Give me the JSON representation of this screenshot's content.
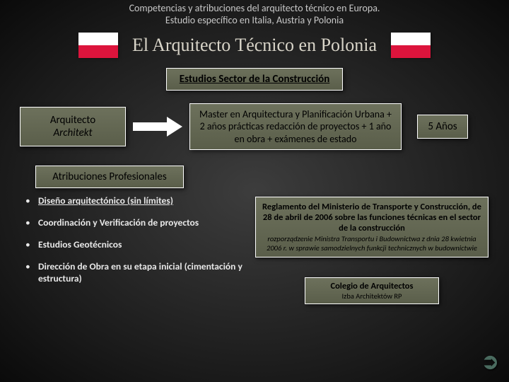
{
  "header": {
    "line1": "Competencias y atribuciones del arquitecto técnico en Europa.",
    "line2": "Estudio específico en Italia, Austria y Polonia"
  },
  "title": "El Arquitecto Técnico en Polonia",
  "flag": {
    "top_color": "#ffffff",
    "bottom_color": "#dc143c"
  },
  "section_header": "Estudios Sector de la Construcción",
  "arquitecto": {
    "line1": "Arquitecto",
    "line2": "Architekt"
  },
  "master_text": "Master en Arquitectura y Planificación Urbana + 2 años prácticas redacción de proyectos + 1 año en obra + exámenes de estado",
  "years": "5 Años",
  "atribuciones_header": "Atribuciones Profesionales",
  "bullets": [
    "Diseño arquitectónico (sin límites)",
    "Coordinación y Verificación de proyectos",
    "Estudios Geotécnicos",
    "Dirección de Obra en su etapa inicial (cimentación y estructura)"
  ],
  "reglamento": {
    "main": "Reglamento del Ministerio de Transporte y Construcción, de 28 de abril de 2006 sobre las funciones técnicas en el sector de la construcción",
    "sub": "rozporządzenie Ministra Transportu i Budownictwa z dnia 28 kwietnia 2006 r. w sprawie samodzielnych funkcji technicznych w budownictwie"
  },
  "colegio": {
    "main": "Colegio de Arquitectos",
    "sub": "Izba Architektów RP"
  },
  "colors": {
    "box_bg_top": "#6d715c",
    "box_bg_bottom": "#5a5e4a",
    "box_border": "#ffffff",
    "header_text": "#c8c8c8",
    "title_text": "#d8d4c8",
    "bullet_text": "#e8e8e8",
    "arrow_fill": "#ffffff",
    "corner_arrow": "#4a6b5f"
  }
}
